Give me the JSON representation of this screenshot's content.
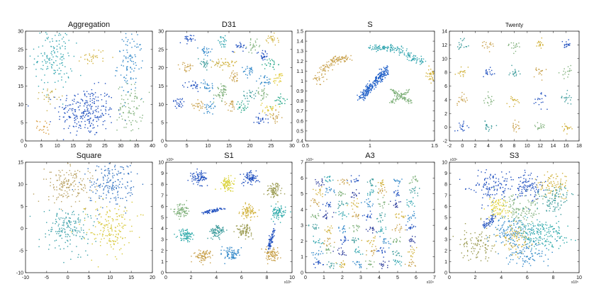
{
  "figure": "Scatter plots of eight clustering benchmark datasets",
  "chart_data": [
    {
      "type": "scatter",
      "title": "Aggregation",
      "xlim": [
        0,
        40
      ],
      "ylim": [
        0,
        30
      ],
      "xticks": [
        "0",
        "5",
        "10",
        "15",
        "20",
        "25",
        "30",
        "35",
        "40"
      ],
      "yticks": [
        "0",
        "5",
        "10",
        "15",
        "20",
        "25",
        "30"
      ],
      "multiplier_x": "",
      "multiplier_y": "",
      "clusters": [
        {
          "color": "#1f4fbf",
          "cx": 19,
          "cy": 8,
          "sx": 4.5,
          "sy": 3.3,
          "n": 260,
          "shape": "disc"
        },
        {
          "color": "#33a6b0",
          "cx": 9,
          "cy": 23,
          "sx": 3,
          "sy": 4.5,
          "n": 150,
          "shape": "disc"
        },
        {
          "color": "#2e86c8",
          "cx": 33,
          "cy": 21,
          "sx": 2,
          "sy": 4.5,
          "n": 100,
          "shape": "disc"
        },
        {
          "color": "#7fb07a",
          "cx": 33,
          "cy": 9,
          "sx": 2,
          "sy": 3.2,
          "n": 80,
          "shape": "disc"
        },
        {
          "color": "#d1b13a",
          "cx": 21.5,
          "cy": 23,
          "sx": 2,
          "sy": 1.2,
          "n": 30,
          "shape": "disc"
        },
        {
          "color": "#c8b04a",
          "cx": 7.5,
          "cy": 12.5,
          "sx": 1.4,
          "sy": 1.1,
          "n": 25,
          "shape": "disc"
        },
        {
          "color": "#d89a3a",
          "cx": 6,
          "cy": 3.8,
          "sx": 1.2,
          "sy": 1,
          "n": 20,
          "shape": "disc"
        }
      ]
    },
    {
      "type": "scatter",
      "title": "D31",
      "xlim": [
        0,
        30
      ],
      "ylim": [
        0,
        30
      ],
      "xticks": [
        "0",
        "5",
        "10",
        "15",
        "20",
        "25",
        "30"
      ],
      "yticks": [
        "0",
        "5",
        "10",
        "15",
        "20",
        "25",
        "30"
      ],
      "multiplier_x": "",
      "multiplier_y": "",
      "clusters": [
        {
          "color": "#1f4fbf",
          "cx": 5,
          "cy": 27.5,
          "sx": 0.8,
          "sy": 0.8,
          "n": 24
        },
        {
          "color": "#2e86c8",
          "cx": 9.5,
          "cy": 24.5,
          "sx": 0.8,
          "sy": 0.8,
          "n": 24
        },
        {
          "color": "#33a6b0",
          "cx": 13.5,
          "cy": 27,
          "sx": 0.8,
          "sy": 0.8,
          "n": 24
        },
        {
          "color": "#1f4fbf",
          "cx": 17.5,
          "cy": 26,
          "sx": 0.8,
          "sy": 0.8,
          "n": 24
        },
        {
          "color": "#7fb07a",
          "cx": 21,
          "cy": 26,
          "sx": 0.8,
          "sy": 0.8,
          "n": 24
        },
        {
          "color": "#d1b13a",
          "cx": 25,
          "cy": 27.5,
          "sx": 0.8,
          "sy": 0.8,
          "n": 24
        },
        {
          "color": "#c8a04a",
          "cx": 5,
          "cy": 20,
          "sx": 0.8,
          "sy": 0.8,
          "n": 24
        },
        {
          "color": "#3a9a9a",
          "cx": 9,
          "cy": 21.5,
          "sx": 0.8,
          "sy": 0.8,
          "n": 24
        },
        {
          "color": "#c8b04a",
          "cx": 12.5,
          "cy": 21,
          "sx": 0.8,
          "sy": 0.8,
          "n": 24
        },
        {
          "color": "#d1b13a",
          "cx": 15,
          "cy": 21.5,
          "sx": 0.8,
          "sy": 0.8,
          "n": 24
        },
        {
          "color": "#2e86c8",
          "cx": 20,
          "cy": 19,
          "sx": 0.8,
          "sy": 0.8,
          "n": 24
        },
        {
          "color": "#1f4fbf",
          "cx": 23,
          "cy": 23.5,
          "sx": 0.8,
          "sy": 0.8,
          "n": 24
        },
        {
          "color": "#2aa88a",
          "cx": 25,
          "cy": 21,
          "sx": 0.8,
          "sy": 0.8,
          "n": 24
        },
        {
          "color": "#1f4fbf",
          "cx": 6.5,
          "cy": 15,
          "sx": 0.8,
          "sy": 0.8,
          "n": 24
        },
        {
          "color": "#2e86c8",
          "cx": 10,
          "cy": 15,
          "sx": 0.8,
          "sy": 0.8,
          "n": 24
        },
        {
          "color": "#7fb07a",
          "cx": 13.5,
          "cy": 14,
          "sx": 0.8,
          "sy": 0.8,
          "n": 24
        },
        {
          "color": "#c8a04a",
          "cx": 16.5,
          "cy": 17.5,
          "sx": 0.8,
          "sy": 0.8,
          "n": 24
        },
        {
          "color": "#2e86c8",
          "cx": 23.5,
          "cy": 16.5,
          "sx": 0.8,
          "sy": 0.8,
          "n": 24
        },
        {
          "color": "#e0c830",
          "cx": 27,
          "cy": 17,
          "sx": 0.8,
          "sy": 0.8,
          "n": 24
        },
        {
          "color": "#1f4fbf",
          "cx": 3,
          "cy": 10.5,
          "sx": 0.8,
          "sy": 0.8,
          "n": 24
        },
        {
          "color": "#c8a04a",
          "cx": 8,
          "cy": 10,
          "sx": 0.8,
          "sy": 0.8,
          "n": 24
        },
        {
          "color": "#7fb07a",
          "cx": 13,
          "cy": 12.5,
          "sx": 0.8,
          "sy": 0.8,
          "n": 24
        },
        {
          "color": "#c8a04a",
          "cx": 15.5,
          "cy": 10,
          "sx": 0.8,
          "sy": 0.8,
          "n": 24
        },
        {
          "color": "#3a9a9a",
          "cx": 20,
          "cy": 12.5,
          "sx": 0.8,
          "sy": 0.8,
          "n": 24
        },
        {
          "color": "#e0c830",
          "cx": 24.5,
          "cy": 9,
          "sx": 0.8,
          "sy": 0.8,
          "n": 24
        },
        {
          "color": "#2aa88a",
          "cx": 27.5,
          "cy": 11,
          "sx": 0.8,
          "sy": 0.8,
          "n": 24
        },
        {
          "color": "#2e86c8",
          "cx": 10.5,
          "cy": 9.5,
          "sx": 0.8,
          "sy": 0.8,
          "n": 24
        },
        {
          "color": "#2aa88a",
          "cx": 18,
          "cy": 9,
          "sx": 0.8,
          "sy": 0.8,
          "n": 24
        },
        {
          "color": "#1f4fbf",
          "cx": 22.5,
          "cy": 6,
          "sx": 0.8,
          "sy": 0.8,
          "n": 24
        },
        {
          "color": "#c8a04a",
          "cx": 26,
          "cy": 6.5,
          "sx": 0.8,
          "sy": 0.8,
          "n": 24
        },
        {
          "color": "#7fb07a",
          "cx": 23,
          "cy": 13,
          "sx": 0.8,
          "sy": 0.8,
          "n": 24
        }
      ]
    },
    {
      "type": "scatter",
      "title": "S",
      "xlim": [
        0.5,
        1.5
      ],
      "ylim": [
        0.4,
        1.5
      ],
      "xticks": [
        "0.5",
        "1",
        "1.5"
      ],
      "yticks": [
        "0.4",
        "0.5",
        "0.6",
        "0.7",
        "0.8",
        "0.9",
        "1",
        "1.1",
        "1.2",
        "1.3",
        "1.4",
        "1.5"
      ],
      "multiplier_x": "",
      "multiplier_y": "",
      "clusters": [
        {
          "color": "#c8a04a",
          "cx": 0.72,
          "cy": 1.1,
          "sx": 0.04,
          "sy": 0.035,
          "n": 130,
          "shape": "arc",
          "x0": 0.57,
          "y0": 0.98,
          "x1": 0.82,
          "y1": 1.23
        },
        {
          "color": "#33a6b0",
          "cx": 1.2,
          "cy": 1.33,
          "sx": 0.04,
          "sy": 0.03,
          "n": 160,
          "shape": "arc",
          "x0": 1.0,
          "y0": 1.33,
          "x1": 1.4,
          "y1": 1.18
        },
        {
          "color": "#1f5fc8",
          "cx": 1.04,
          "cy": 0.97,
          "sx": 0.03,
          "sy": 0.03,
          "n": 260,
          "shape": "line",
          "x0": 0.93,
          "y0": 0.83,
          "x1": 1.13,
          "y1": 1.12
        },
        {
          "color": "#7fb07a",
          "cx": 1.24,
          "cy": 0.85,
          "sx": 0.035,
          "sy": 0.03,
          "n": 120,
          "shape": "cross"
        },
        {
          "color": "#d1b13a",
          "cx": 1.48,
          "cy": 1.06,
          "sx": 0.02,
          "sy": 0.025,
          "n": 40,
          "shape": "disc"
        }
      ]
    },
    {
      "type": "scatter",
      "title": "Twenty",
      "xlim": [
        -2,
        18
      ],
      "ylim": [
        -2,
        14
      ],
      "xticks": [
        "-2",
        "0",
        "2",
        "4",
        "6",
        "8",
        "10",
        "12",
        "14",
        "16",
        "18"
      ],
      "yticks": [
        "-2",
        "0",
        "2",
        "4",
        "6",
        "8",
        "10",
        "12",
        "14"
      ],
      "multiplier_x": "",
      "multiplier_y": "",
      "grid": {
        "xs": [
          0,
          4,
          8,
          12,
          16
        ],
        "ys": [
          0,
          4,
          8,
          12
        ],
        "spread": 0.45,
        "n": 18,
        "colors": [
          "#1f4fbf",
          "#c8a04a",
          "#d1b13a",
          "#3a9a9a",
          "#7fb07a"
        ]
      }
    },
    {
      "type": "scatter",
      "title": "Square",
      "xlim": [
        -10,
        20
      ],
      "ylim": [
        -10,
        15
      ],
      "xticks": [
        "-10",
        "-5",
        "0",
        "5",
        "10",
        "15",
        "20"
      ],
      "yticks": [
        "-10",
        "-5",
        "0",
        "5",
        "10",
        "15"
      ],
      "multiplier_x": "",
      "multiplier_y": "",
      "clusters": [
        {
          "color": "#b8a060",
          "cx": 0,
          "cy": 10,
          "sx": 2.6,
          "sy": 2.6,
          "n": 170
        },
        {
          "color": "#2e6fc0",
          "cx": 10,
          "cy": 10,
          "sx": 2.6,
          "sy": 2.6,
          "n": 170
        },
        {
          "color": "#3aa0a8",
          "cx": 0,
          "cy": 0,
          "sx": 2.6,
          "sy": 2.6,
          "n": 170
        },
        {
          "color": "#d8c83a",
          "cx": 10,
          "cy": 0,
          "sx": 2.6,
          "sy": 2.6,
          "n": 170
        }
      ]
    },
    {
      "type": "scatter",
      "title": "S1",
      "xlim": [
        0,
        10
      ],
      "ylim": [
        0,
        10
      ],
      "xticks": [
        "0",
        "2",
        "4",
        "6",
        "8",
        "10"
      ],
      "yticks": [
        "0",
        "1",
        "2",
        "3",
        "4",
        "5",
        "6",
        "7",
        "8",
        "9",
        "10"
      ],
      "multiplier_x": "x10⁵",
      "multiplier_y": "x10⁵",
      "clusters": [
        {
          "color": "#1f4fbf",
          "cx": 2.7,
          "cy": 8.6,
          "sx": 0.3,
          "sy": 0.3,
          "n": 80
        },
        {
          "color": "#d8d030",
          "cx": 4.9,
          "cy": 8.0,
          "sx": 0.3,
          "sy": 0.3,
          "n": 80
        },
        {
          "color": "#1f4fbf",
          "cx": 6.7,
          "cy": 8.6,
          "sx": 0.3,
          "sy": 0.3,
          "n": 80
        },
        {
          "color": "#9a9a50",
          "cx": 8.6,
          "cy": 7.5,
          "sx": 0.3,
          "sy": 0.3,
          "n": 80
        },
        {
          "color": "#7fb07a",
          "cx": 1.2,
          "cy": 5.6,
          "sx": 0.3,
          "sy": 0.3,
          "n": 80
        },
        {
          "color": "#1f4fbf",
          "cx": 3.8,
          "cy": 5.6,
          "sx": 0.4,
          "sy": 0.08,
          "n": 70,
          "shape": "line",
          "x0": 3.1,
          "y0": 5.4,
          "x1": 4.4,
          "y1": 5.8
        },
        {
          "color": "#d1b13a",
          "cx": 6.5,
          "cy": 5.5,
          "sx": 0.3,
          "sy": 0.3,
          "n": 80
        },
        {
          "color": "#2aa8a8",
          "cx": 8.9,
          "cy": 5.4,
          "sx": 0.3,
          "sy": 0.3,
          "n": 80
        },
        {
          "color": "#2aa8a8",
          "cx": 1.6,
          "cy": 3.4,
          "sx": 0.3,
          "sy": 0.3,
          "n": 80
        },
        {
          "color": "#3a9a9a",
          "cx": 4.1,
          "cy": 3.7,
          "sx": 0.3,
          "sy": 0.3,
          "n": 80
        },
        {
          "color": "#9a9a50",
          "cx": 6.2,
          "cy": 3.8,
          "sx": 0.3,
          "sy": 0.3,
          "n": 80
        },
        {
          "color": "#1f4fbf",
          "cx": 8.3,
          "cy": 3.0,
          "sx": 0.1,
          "sy": 0.4,
          "n": 70,
          "shape": "line",
          "x0": 8.1,
          "y0": 2.2,
          "x1": 8.6,
          "y1": 3.8
        },
        {
          "color": "#c8a04a",
          "cx": 3.0,
          "cy": 1.6,
          "sx": 0.35,
          "sy": 0.3,
          "n": 80
        },
        {
          "color": "#2e86c8",
          "cx": 5.2,
          "cy": 1.7,
          "sx": 0.3,
          "sy": 0.3,
          "n": 80
        },
        {
          "color": "#c8a04a",
          "cx": 8.4,
          "cy": 1.6,
          "sx": 0.3,
          "sy": 0.3,
          "n": 80
        }
      ]
    },
    {
      "type": "scatter",
      "title": "A3",
      "xlim": [
        0,
        7
      ],
      "ylim": [
        0,
        7
      ],
      "xticks": [
        "0",
        "1",
        "2",
        "3",
        "4",
        "5",
        "6",
        "7"
      ],
      "yticks": [
        "0",
        "1",
        "2",
        "3",
        "4",
        "5",
        "6",
        "7"
      ],
      "multiplier_x": "x10⁴",
      "multiplier_y": "x10⁴",
      "grid": {
        "xs": [
          0.6,
          1.3,
          2.0,
          2.75,
          3.5,
          4.2,
          5.0,
          5.8
        ],
        "ys": [
          0.55,
          1.3,
          2.05,
          2.8,
          3.6,
          4.35,
          5.1,
          5.8
        ],
        "spread": 0.14,
        "n": 14,
        "jitter": 0.12,
        "colors": [
          "#1f4fbf",
          "#2e86c8",
          "#33a6b0",
          "#3a9a9a",
          "#7fb07a",
          "#c8a04a",
          "#d1b13a",
          "#2a3a9a"
        ]
      }
    },
    {
      "type": "scatter",
      "title": "S3",
      "xlim": [
        0,
        10
      ],
      "ylim": [
        0,
        10
      ],
      "xticks": [
        "0",
        "2",
        "4",
        "6",
        "8",
        "10"
      ],
      "yticks": [
        "0",
        "1",
        "2",
        "3",
        "4",
        "5",
        "6",
        "7",
        "8",
        "9",
        "10"
      ],
      "multiplier_x": "x10⁵",
      "multiplier_y": "x10⁵",
      "clusters": [
        {
          "color": "#1f4fbf",
          "cx": 3.2,
          "cy": 7.8,
          "sx": 0.7,
          "sy": 0.7,
          "n": 110
        },
        {
          "color": "#1f4fbf",
          "cx": 6.0,
          "cy": 7.8,
          "sx": 0.7,
          "sy": 0.7,
          "n": 110
        },
        {
          "color": "#d1b13a",
          "cx": 7.9,
          "cy": 7.9,
          "sx": 0.6,
          "sy": 0.6,
          "n": 90
        },
        {
          "color": "#3a9a9a",
          "cx": 8.0,
          "cy": 6.6,
          "sx": 0.6,
          "sy": 0.6,
          "n": 90
        },
        {
          "color": "#e0d030",
          "cx": 3.8,
          "cy": 6.0,
          "sx": 0.5,
          "sy": 0.5,
          "n": 80
        },
        {
          "color": "#7fb07a",
          "cx": 5.5,
          "cy": 5.8,
          "sx": 0.8,
          "sy": 0.8,
          "n": 110
        },
        {
          "color": "#2e86c8",
          "cx": 4.5,
          "cy": 3.8,
          "sx": 0.7,
          "sy": 0.7,
          "n": 110
        },
        {
          "color": "#33a6b0",
          "cx": 6.2,
          "cy": 3.6,
          "sx": 0.7,
          "sy": 0.7,
          "n": 110
        },
        {
          "color": "#9a9a50",
          "cx": 2.3,
          "cy": 2.6,
          "sx": 0.7,
          "sy": 0.7,
          "n": 110
        },
        {
          "color": "#d1b13a",
          "cx": 5.2,
          "cy": 3.0,
          "sx": 0.6,
          "sy": 0.6,
          "n": 80
        },
        {
          "color": "#2aa8a8",
          "cx": 7.5,
          "cy": 3.5,
          "sx": 0.7,
          "sy": 0.7,
          "n": 100
        },
        {
          "color": "#1f4fbf",
          "cx": 3.1,
          "cy": 4.6,
          "sx": 0.1,
          "sy": 0.3,
          "n": 50,
          "shape": "line",
          "x0": 2.6,
          "y0": 4.1,
          "x1": 3.5,
          "y1": 5.1
        },
        {
          "color": "#2e86c8",
          "cx": 6.0,
          "cy": 1.7,
          "sx": 0.8,
          "sy": 0.6,
          "n": 90
        }
      ]
    }
  ]
}
